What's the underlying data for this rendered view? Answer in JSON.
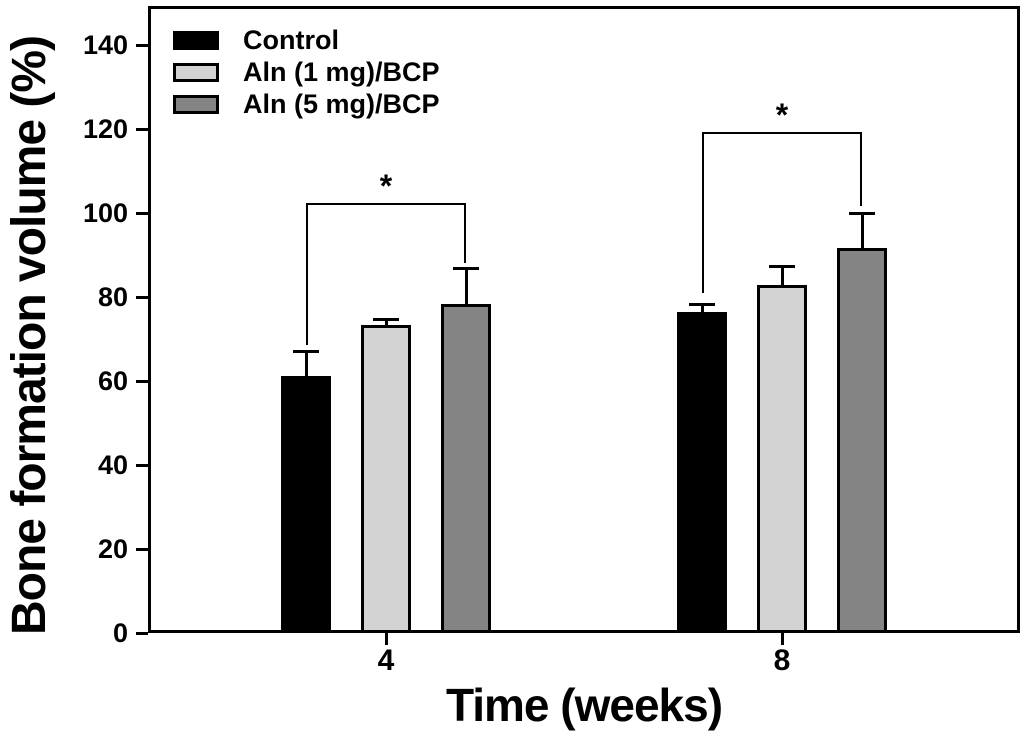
{
  "chart_data": {
    "type": "bar",
    "title": "",
    "xlabel": "Time (weeks)",
    "ylabel": "Bone formation volume (%)",
    "categories": [
      "4",
      "8"
    ],
    "yticks": [
      0,
      20,
      40,
      60,
      80,
      100,
      120,
      140
    ],
    "ylim": [
      0,
      149
    ],
    "grid": false,
    "legend_position": "top-left",
    "series": [
      {
        "name": "Control",
        "color": "#000000",
        "values": [
          61.2,
          76.4
        ],
        "errors": [
          5.9,
          1.7
        ]
      },
      {
        "name": "Aln (1 mg)/BCP",
        "color": "#d3d3d3",
        "values": [
          73.3,
          82.9
        ],
        "errors": [
          1.4,
          4.3
        ]
      },
      {
        "name": "Aln (5 mg)/BCP",
        "color": "#848484",
        "values": [
          78.3,
          91.7
        ],
        "errors": [
          8.4,
          8.3
        ]
      }
    ],
    "significance_brackets": [
      {
        "group_index": 0,
        "from_series": 0,
        "to_series": 2,
        "label": "*",
        "bracket_y": 102.5,
        "left_leg_bottom": 68.6,
        "right_leg_bottom": 88.1
      },
      {
        "group_index": 1,
        "from_series": 0,
        "to_series": 2,
        "label": "*",
        "bracket_y": 119.3,
        "left_leg_bottom": 81.0,
        "right_leg_bottom": 101.7
      }
    ]
  },
  "colors": {
    "axis": "#000000",
    "background": "#ffffff"
  }
}
